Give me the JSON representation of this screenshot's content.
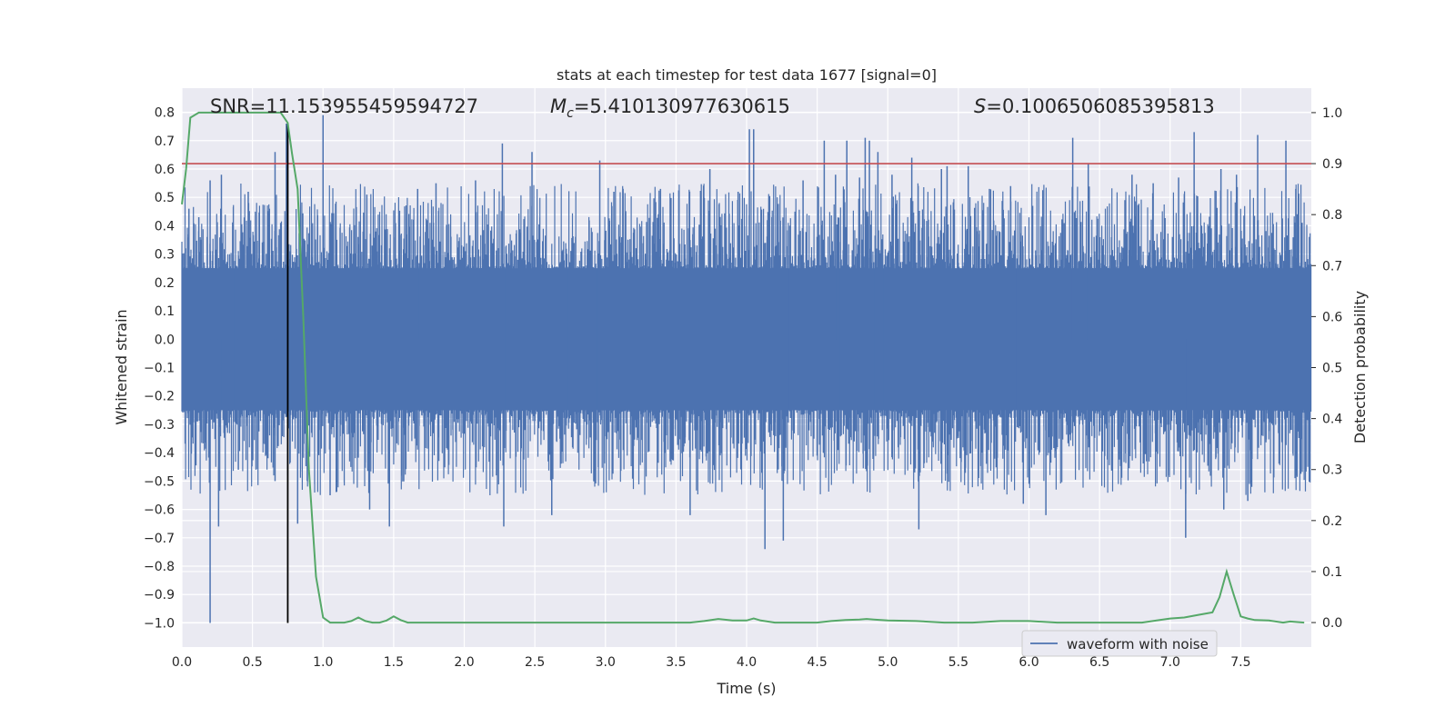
{
  "chart_data": {
    "type": "line",
    "title": "stats at each timestep for test data 1677 [signal=0]",
    "xlabel": "Time (s)",
    "ylabel": "Whitened strain",
    "ylabel_right": "Detection probability",
    "xlim": [
      0.0,
      8.0
    ],
    "ylim": [
      -1.085,
      0.885
    ],
    "ylim_right": [
      -0.048,
      1.048
    ],
    "x_ticks": [
      "0.0",
      "0.5",
      "1.0",
      "1.5",
      "2.0",
      "2.5",
      "3.0",
      "3.5",
      "4.0",
      "4.5",
      "5.0",
      "5.5",
      "6.0",
      "6.5",
      "7.0",
      "7.5"
    ],
    "x_tick_values": [
      0.0,
      0.5,
      1.0,
      1.5,
      2.0,
      2.5,
      3.0,
      3.5,
      4.0,
      4.5,
      5.0,
      5.5,
      6.0,
      6.5,
      7.0,
      7.5
    ],
    "y_ticks": [
      "0.8",
      "0.7",
      "0.6",
      "0.5",
      "0.4",
      "0.3",
      "0.2",
      "0.1",
      "0.0",
      "−0.1",
      "−0.2",
      "−0.3",
      "−0.4",
      "−0.5",
      "−0.6",
      "−0.7",
      "−0.8",
      "−0.9",
      "−1.0"
    ],
    "y_tick_values": [
      0.8,
      0.7,
      0.6,
      0.5,
      0.4,
      0.3,
      0.2,
      0.1,
      0.0,
      -0.1,
      -0.2,
      -0.3,
      -0.4,
      -0.5,
      -0.6,
      -0.7,
      -0.8,
      -0.9,
      -1.0
    ],
    "y_right_ticks": [
      "1.0",
      "0.9",
      "0.8",
      "0.7",
      "0.6",
      "0.5",
      "0.4",
      "0.3",
      "0.2",
      "0.1",
      "0.0"
    ],
    "y_right_tick_values": [
      1.0,
      0.9,
      0.8,
      0.7,
      0.6,
      0.5,
      0.4,
      0.3,
      0.2,
      0.1,
      0.0
    ],
    "annotations": {
      "snr": "SNR=11.153955459594727",
      "mc_symbol": "M",
      "mc_sub": "c",
      "mc_value": "=5.410130977630615",
      "s_symbol": "S",
      "s_value": "=0.1006506085395813"
    },
    "legend": {
      "label": "waveform with noise",
      "position": "lower-right"
    },
    "threshold_line": {
      "axis": "right",
      "value": 0.9,
      "color": "#c44e52"
    },
    "marker_line": {
      "x": 0.75,
      "y_from": -1.0,
      "y_to": 0.76,
      "color": "#000000"
    },
    "waveform": {
      "name": "waveform with noise",
      "color": "#4c72b0",
      "core_envelope": 0.25,
      "spikes": [
        [
          0.05,
          0.46
        ],
        [
          0.12,
          0.43
        ],
        [
          0.2,
          -1.0
        ],
        [
          0.2,
          0.56
        ],
        [
          0.26,
          -0.66
        ],
        [
          0.28,
          0.58
        ],
        [
          0.4,
          -0.46
        ],
        [
          0.47,
          0.52
        ],
        [
          0.62,
          0.46
        ],
        [
          0.66,
          0.66
        ],
        [
          0.66,
          -0.5
        ],
        [
          0.74,
          0.76
        ],
        [
          0.82,
          -0.65
        ],
        [
          1.0,
          0.79
        ],
        [
          1.05,
          -0.55
        ],
        [
          1.31,
          0.51
        ],
        [
          1.33,
          -0.6
        ],
        [
          1.47,
          -0.66
        ],
        [
          1.67,
          0.53
        ],
        [
          1.8,
          0.55
        ],
        [
          2.08,
          0.56
        ],
        [
          2.27,
          0.69
        ],
        [
          2.28,
          -0.66
        ],
        [
          2.48,
          0.66
        ],
        [
          2.62,
          -0.62
        ],
        [
          2.96,
          0.63
        ],
        [
          3.06,
          0.52
        ],
        [
          3.39,
          0.53
        ],
        [
          3.6,
          -0.62
        ],
        [
          3.74,
          0.6
        ],
        [
          3.94,
          0.52
        ],
        [
          4.02,
          0.74
        ],
        [
          4.05,
          0.74
        ],
        [
          4.13,
          -0.74
        ],
        [
          4.26,
          -0.71
        ],
        [
          4.4,
          0.56
        ],
        [
          4.55,
          0.7
        ],
        [
          4.63,
          0.58
        ],
        [
          4.71,
          0.7
        ],
        [
          4.8,
          0.57
        ],
        [
          4.84,
          0.71
        ],
        [
          4.87,
          0.7
        ],
        [
          4.93,
          0.66
        ],
        [
          5.03,
          0.58
        ],
        [
          5.17,
          0.64
        ],
        [
          5.22,
          -0.67
        ],
        [
          5.38,
          0.6
        ],
        [
          5.42,
          0.61
        ],
        [
          5.57,
          0.61
        ],
        [
          5.72,
          0.53
        ],
        [
          5.87,
          0.54
        ],
        [
          5.96,
          -0.58
        ],
        [
          6.12,
          -0.62
        ],
        [
          6.31,
          0.71
        ],
        [
          6.42,
          0.62
        ],
        [
          6.73,
          0.58
        ],
        [
          6.88,
          0.55
        ],
        [
          7.06,
          0.57
        ],
        [
          7.11,
          -0.7
        ],
        [
          7.17,
          0.73
        ],
        [
          7.36,
          0.6
        ],
        [
          7.38,
          -0.6
        ],
        [
          7.47,
          0.58
        ],
        [
          7.55,
          -0.57
        ],
        [
          7.62,
          0.72
        ],
        [
          7.82,
          0.7
        ],
        [
          7.89,
          0.53
        ]
      ]
    },
    "series": [
      {
        "name": "detection probability",
        "axis": "right",
        "color": "#55a868",
        "x": [
          0.0,
          0.03,
          0.06,
          0.12,
          0.2,
          0.3,
          0.4,
          0.5,
          0.6,
          0.66,
          0.7,
          0.75,
          0.78,
          0.82,
          0.86,
          0.9,
          0.95,
          1.0,
          1.05,
          1.1,
          1.15,
          1.2,
          1.25,
          1.3,
          1.35,
          1.4,
          1.45,
          1.5,
          1.55,
          1.6,
          1.7,
          1.8,
          1.9,
          2.0,
          2.2,
          2.4,
          2.6,
          2.8,
          3.0,
          3.2,
          3.4,
          3.6,
          3.7,
          3.8,
          3.9,
          4.0,
          4.05,
          4.1,
          4.2,
          4.3,
          4.4,
          4.5,
          4.6,
          4.7,
          4.8,
          4.85,
          4.9,
          5.0,
          5.2,
          5.4,
          5.6,
          5.8,
          6.0,
          6.2,
          6.4,
          6.6,
          6.8,
          7.0,
          7.1,
          7.2,
          7.3,
          7.35,
          7.4,
          7.45,
          7.5,
          7.55,
          7.6,
          7.7,
          7.8,
          7.85,
          7.95
        ],
        "values": [
          0.82,
          0.89,
          0.99,
          1.0,
          1.0,
          1.0,
          1.0,
          1.0,
          1.0,
          1.0,
          1.0,
          0.98,
          0.92,
          0.85,
          0.6,
          0.3,
          0.09,
          0.01,
          0.0,
          0.0,
          0.0,
          0.003,
          0.01,
          0.003,
          0.0,
          0.0,
          0.004,
          0.012,
          0.005,
          0.0,
          0.0,
          0.0,
          0.0,
          0.0,
          0.0,
          0.0,
          0.0,
          0.0,
          0.0,
          0.0,
          0.0,
          0.0,
          0.003,
          0.007,
          0.004,
          0.004,
          0.008,
          0.004,
          0.0,
          0.0,
          0.0,
          0.0,
          0.003,
          0.005,
          0.006,
          0.007,
          0.006,
          0.004,
          0.003,
          0.0,
          0.0,
          0.003,
          0.003,
          0.0,
          0.0,
          0.0,
          0.0,
          0.008,
          0.01,
          0.015,
          0.02,
          0.05,
          0.1,
          0.055,
          0.012,
          0.008,
          0.005,
          0.004,
          0.0,
          0.002,
          0.0
        ]
      }
    ]
  }
}
